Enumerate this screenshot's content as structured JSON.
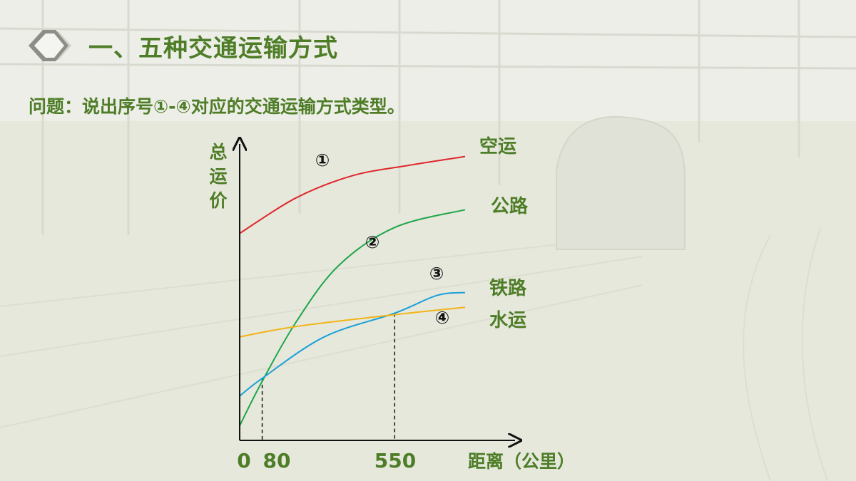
{
  "page": {
    "title": "一、五种交通运输方式",
    "question": "问题：说出序号①-④对应的交通运输方式类型。",
    "colors": {
      "theme_green": "#4e7d27"
    }
  },
  "chart_data": {
    "type": "line",
    "xlabel": "距离（公里）",
    "ylabel": "总运价",
    "x_ticks": [
      "0",
      "80",
      "550"
    ],
    "xlim": [
      0,
      850
    ],
    "ylim": [
      0,
      100
    ],
    "reference_x": [
      80,
      550
    ],
    "series": [
      {
        "name": "空运",
        "marker": "①",
        "color": "#e0262b",
        "points": [
          [
            0,
            70
          ],
          [
            200,
            82
          ],
          [
            400,
            89.5
          ],
          [
            600,
            93
          ],
          [
            800,
            96
          ]
        ]
      },
      {
        "name": "公路",
        "marker": "②",
        "color": "#1fa64a",
        "points": [
          [
            0,
            5
          ],
          [
            80,
            20
          ],
          [
            200,
            40
          ],
          [
            350,
            59
          ],
          [
            550,
            72
          ],
          [
            800,
            78
          ]
        ]
      },
      {
        "name": "铁路",
        "marker": "③",
        "color": "#1aa0d8",
        "points": [
          [
            0,
            15
          ],
          [
            80,
            21
          ],
          [
            300,
            35
          ],
          [
            550,
            43
          ],
          [
            700,
            49
          ],
          [
            800,
            50
          ]
        ]
      },
      {
        "name": "水运",
        "marker": "④",
        "color": "#f2b418",
        "points": [
          [
            0,
            35
          ],
          [
            200,
            38.5
          ],
          [
            550,
            42.5
          ],
          [
            800,
            45
          ]
        ]
      }
    ]
  }
}
